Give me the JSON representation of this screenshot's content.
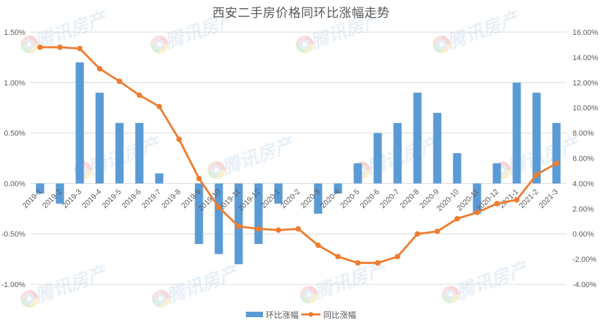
{
  "title": "西安二手房价格同环比涨幅走势",
  "legend": {
    "bar_label": "环比涨幅",
    "line_label": "同比涨幅"
  },
  "watermark": {
    "text": "腾讯房产"
  },
  "colors": {
    "bar": "#5B9BD5",
    "line": "#ED7D31",
    "grid": "#D9D9D9",
    "text": "#595959"
  },
  "chart_data": {
    "type": "bar+line",
    "title": "西安二手房价格同环比涨幅走势",
    "xlabel": "",
    "ylabel": "",
    "grid": true,
    "legend_position": "bottom",
    "categories": [
      "2019-1",
      "2019-2",
      "2019-3",
      "2019-4",
      "2019-5",
      "2019-6",
      "2019-7",
      "2019-8",
      "2019-9",
      "2019-10",
      "2019-11",
      "2019-12",
      "2020-1",
      "2020-2",
      "2020-3",
      "2020-4",
      "2020-5",
      "2020-6",
      "2020-7",
      "2020-8",
      "2020-9",
      "2020-10",
      "2020-11",
      "2020-12",
      "2021-1",
      "2021-2",
      "2021-3"
    ],
    "series": [
      {
        "name": "环比涨幅",
        "type": "bar",
        "axis": "left",
        "unit": "%",
        "values": [
          -0.1,
          -0.2,
          1.2,
          0.9,
          0.6,
          0.6,
          0.1,
          0.0,
          -0.6,
          -0.7,
          -0.8,
          -0.6,
          -0.2,
          0.0,
          -0.3,
          -0.1,
          0.2,
          0.5,
          0.6,
          0.9,
          0.7,
          0.3,
          -0.3,
          0.2,
          1.0,
          0.9,
          0.6
        ]
      },
      {
        "name": "同比涨幅",
        "type": "line",
        "axis": "right",
        "unit": "%",
        "values": [
          14.8,
          14.8,
          14.7,
          13.1,
          12.1,
          11.0,
          10.1,
          7.5,
          4.4,
          2.1,
          0.6,
          0.4,
          0.3,
          0.4,
          -0.9,
          -1.8,
          -2.3,
          -2.3,
          -1.8,
          0.0,
          0.2,
          1.2,
          1.7,
          2.4,
          2.7,
          4.7,
          5.6
        ]
      }
    ],
    "left_axis": {
      "range": [
        -1.0,
        1.5
      ],
      "ticks": [
        "1.50%",
        "1.00%",
        "0.50%",
        "0.00%",
        "-0.50%",
        "-1.00%"
      ]
    },
    "right_axis": {
      "range": [
        -4,
        16
      ],
      "ticks": [
        "16.00%",
        "14.00%",
        "12.00%",
        "10.00%",
        "8.00%",
        "6.00%",
        "4.00%",
        "2.00%",
        "0.00%",
        "-2.00%",
        "-4.00%"
      ]
    }
  }
}
